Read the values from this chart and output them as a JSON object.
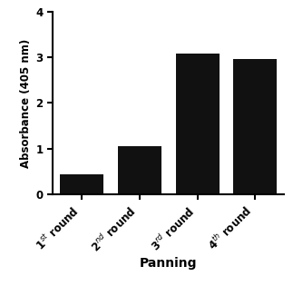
{
  "categories": [
    "1$^{st}$ round",
    "2$^{nd}$ round",
    "3$^{rd}$ round",
    "4$^{th}$ round"
  ],
  "values": [
    0.45,
    1.05,
    3.07,
    2.97
  ],
  "bar_color": "#111111",
  "xlabel": "Panning",
  "ylabel": "Absorbance (405 nm)",
  "ylim": [
    0,
    4
  ],
  "yticks": [
    0,
    1,
    2,
    3,
    4
  ],
  "bar_width": 0.75,
  "background_color": "#ffffff",
  "xlabel_fontsize": 10,
  "ylabel_fontsize": 8.5,
  "tick_fontsize": 8.5,
  "xlabel_fontweight": "bold",
  "bar_edge_color": "#111111"
}
